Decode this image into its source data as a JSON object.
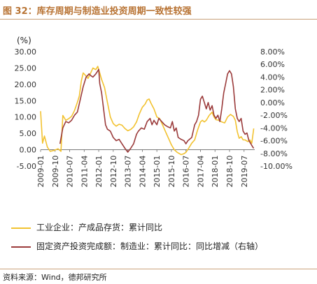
{
  "figure": {
    "title": "图 32：库存周期与制造业投资周期一致性较强",
    "source": "资料来源：Wind，德邦研究所",
    "unit_label": "(%)"
  },
  "colors": {
    "series1": "#f2c230",
    "series2": "#9b3b3b",
    "title": "#b87333"
  },
  "chart_data": {
    "type": "line",
    "title": "",
    "xlabel": "",
    "ylabel": "",
    "x_ticks": [
      "2009-01",
      "2009-10",
      "2010-07",
      "2011-04",
      "2012-01",
      "2012-10",
      "2013-07",
      "2014-04",
      "2015-01",
      "2015-10",
      "2016-07",
      "2017-04",
      "2018-01",
      "2018-10",
      "2019-07"
    ],
    "left_axis": {
      "min": -5,
      "max": 30,
      "ticks": [
        "-5.00",
        "0.00",
        "5.00",
        "10.00",
        "15.00",
        "20.00",
        "25.00",
        "30.00"
      ]
    },
    "right_axis": {
      "min": -10,
      "max": 8,
      "ticks": [
        "-10.00%",
        "-8.00%",
        "-6.00%",
        "-4.00%",
        "-2.00%",
        "0.00%",
        "2.00%",
        "4.00%",
        "6.00%",
        "8.00%"
      ]
    },
    "series": [
      {
        "name": "工业企业：产成品存货：累计同比",
        "axis": "left",
        "points": [
          [
            2009.0,
            11.8
          ],
          [
            2009.1,
            2.0
          ],
          [
            2009.2,
            4.2
          ],
          [
            2009.35,
            0.8
          ],
          [
            2009.5,
            -0.5
          ],
          [
            2009.7,
            -0.2
          ],
          [
            2009.9,
            0.3
          ],
          [
            2010.05,
            -0.5
          ],
          [
            2010.15,
            10.5
          ],
          [
            2010.3,
            9.0
          ],
          [
            2010.45,
            9.5
          ],
          [
            2010.6,
            10.2
          ],
          [
            2010.75,
            12.0
          ],
          [
            2010.9,
            14.5
          ],
          [
            2011.0,
            16.5
          ],
          [
            2011.1,
            21.0
          ],
          [
            2011.2,
            23.5
          ],
          [
            2011.35,
            22.5
          ],
          [
            2011.45,
            21.8
          ],
          [
            2011.55,
            23.0
          ],
          [
            2011.7,
            25.0
          ],
          [
            2011.85,
            24.5
          ],
          [
            2011.95,
            25.5
          ],
          [
            2012.05,
            23.5
          ],
          [
            2012.15,
            21.5
          ],
          [
            2012.3,
            19.0
          ],
          [
            2012.45,
            14.5
          ],
          [
            2012.6,
            10.0
          ],
          [
            2012.75,
            8.0
          ],
          [
            2012.9,
            7.2
          ],
          [
            2013.05,
            7.8
          ],
          [
            2013.2,
            7.5
          ],
          [
            2013.35,
            6.5
          ],
          [
            2013.5,
            5.8
          ],
          [
            2013.65,
            6.2
          ],
          [
            2013.8,
            7.0
          ],
          [
            2013.95,
            8.5
          ],
          [
            2014.1,
            11.0
          ],
          [
            2014.25,
            13.0
          ],
          [
            2014.4,
            14.0
          ],
          [
            2014.5,
            15.2
          ],
          [
            2014.6,
            15.5
          ],
          [
            2014.7,
            14.2
          ],
          [
            2014.85,
            12.5
          ],
          [
            2015.0,
            10.0
          ],
          [
            2015.15,
            9.5
          ],
          [
            2015.3,
            7.5
          ],
          [
            2015.45,
            5.5
          ],
          [
            2015.6,
            3.5
          ],
          [
            2015.75,
            1.5
          ],
          [
            2015.9,
            0.0
          ],
          [
            2016.05,
            -0.8
          ],
          [
            2016.25,
            -1.5
          ],
          [
            2016.4,
            -1.2
          ],
          [
            2016.5,
            -0.8
          ],
          [
            2016.65,
            0.5
          ],
          [
            2016.8,
            2.0
          ],
          [
            2016.95,
            3.0
          ],
          [
            2017.1,
            6.0
          ],
          [
            2017.25,
            8.5
          ],
          [
            2017.35,
            9.0
          ],
          [
            2017.45,
            8.5
          ],
          [
            2017.55,
            9.0
          ],
          [
            2017.7,
            10.5
          ],
          [
            2017.85,
            11.5
          ],
          [
            2017.95,
            10.0
          ],
          [
            2018.05,
            9.2
          ],
          [
            2018.2,
            9.0
          ],
          [
            2018.35,
            8.5
          ],
          [
            2018.5,
            8.2
          ],
          [
            2018.65,
            10.0
          ],
          [
            2018.8,
            10.8
          ],
          [
            2018.95,
            10.2
          ],
          [
            2019.05,
            9.0
          ],
          [
            2019.15,
            5.5
          ],
          [
            2019.25,
            3.5
          ],
          [
            2019.35,
            4.0
          ],
          [
            2019.45,
            3.0
          ],
          [
            2019.55,
            3.0
          ],
          [
            2019.7,
            2.5
          ],
          [
            2019.8,
            3.0
          ],
          [
            2019.9,
            2.0
          ],
          [
            2020.0,
            6.5
          ]
        ]
      },
      {
        "name": "固定资产投资完成额：制造业：累计同比：同比增减（右轴）",
        "axis": "right",
        "points": [
          [
            2010.0,
            -6.5
          ],
          [
            2010.15,
            -4.0
          ],
          [
            2010.3,
            -3.0
          ],
          [
            2010.45,
            -3.2
          ],
          [
            2010.6,
            -2.8
          ],
          [
            2010.75,
            -2.0
          ],
          [
            2010.9,
            -1.5
          ],
          [
            2011.05,
            0.5
          ],
          [
            2011.2,
            2.5
          ],
          [
            2011.35,
            4.0
          ],
          [
            2011.5,
            4.5
          ],
          [
            2011.6,
            4.2
          ],
          [
            2011.7,
            4.0
          ],
          [
            2011.85,
            4.5
          ],
          [
            2012.0,
            5.2
          ],
          [
            2012.05,
            3.0
          ],
          [
            2012.15,
            1.5
          ],
          [
            2012.25,
            -1.0
          ],
          [
            2012.35,
            -3.5
          ],
          [
            2012.45,
            -4.2
          ],
          [
            2012.6,
            -4.5
          ],
          [
            2012.75,
            -5.5
          ],
          [
            2012.9,
            -6.0
          ],
          [
            2013.05,
            -5.8
          ],
          [
            2013.2,
            -6.5
          ],
          [
            2013.35,
            -7.2
          ],
          [
            2013.5,
            -7.8
          ],
          [
            2013.65,
            -7.2
          ],
          [
            2013.8,
            -6.5
          ],
          [
            2013.95,
            -5.0
          ],
          [
            2014.05,
            -4.5
          ],
          [
            2014.2,
            -4.0
          ],
          [
            2014.35,
            -4.2
          ],
          [
            2014.5,
            -3.0
          ],
          [
            2014.65,
            -2.5
          ],
          [
            2014.75,
            -3.5
          ],
          [
            2014.85,
            -2.8
          ],
          [
            2015.0,
            -3.5
          ],
          [
            2015.1,
            -2.5
          ],
          [
            2015.25,
            -3.0
          ],
          [
            2015.4,
            -3.5
          ],
          [
            2015.55,
            -3.8
          ],
          [
            2015.7,
            -4.0
          ],
          [
            2015.8,
            -3.0
          ],
          [
            2015.9,
            -4.5
          ],
          [
            2016.0,
            -4.0
          ],
          [
            2016.1,
            -5.5
          ],
          [
            2016.25,
            -5.8
          ],
          [
            2016.4,
            -6.0
          ],
          [
            2016.5,
            -6.5
          ],
          [
            2016.6,
            -6.0
          ],
          [
            2016.8,
            -5.5
          ],
          [
            2016.95,
            -3.5
          ],
          [
            2017.05,
            -3.0
          ],
          [
            2017.15,
            -2.0
          ],
          [
            2017.25,
            0.5
          ],
          [
            2017.35,
            1.0
          ],
          [
            2017.45,
            0.0
          ],
          [
            2017.55,
            -1.0
          ],
          [
            2017.65,
            0.0
          ],
          [
            2017.75,
            -1.2
          ],
          [
            2017.85,
            -0.5
          ],
          [
            2017.95,
            -2.0
          ],
          [
            2018.05,
            -2.5
          ],
          [
            2018.15,
            -2.0
          ],
          [
            2018.25,
            -3.0
          ],
          [
            2018.35,
            -1.0
          ],
          [
            2018.45,
            1.5
          ],
          [
            2018.55,
            3.0
          ],
          [
            2018.65,
            4.5
          ],
          [
            2018.75,
            5.0
          ],
          [
            2018.85,
            4.5
          ],
          [
            2018.95,
            2.5
          ],
          [
            2019.05,
            -1.0
          ],
          [
            2019.15,
            -2.5
          ],
          [
            2019.25,
            -3.0
          ],
          [
            2019.35,
            -2.5
          ],
          [
            2019.45,
            -4.5
          ],
          [
            2019.55,
            -5.0
          ],
          [
            2019.65,
            -4.8
          ],
          [
            2019.75,
            -6.0
          ],
          [
            2019.85,
            -6.5
          ],
          [
            2019.95,
            -7.0
          ],
          [
            2020.0,
            -7.2
          ]
        ]
      }
    ],
    "legend_position": "bottom",
    "grid": false
  }
}
